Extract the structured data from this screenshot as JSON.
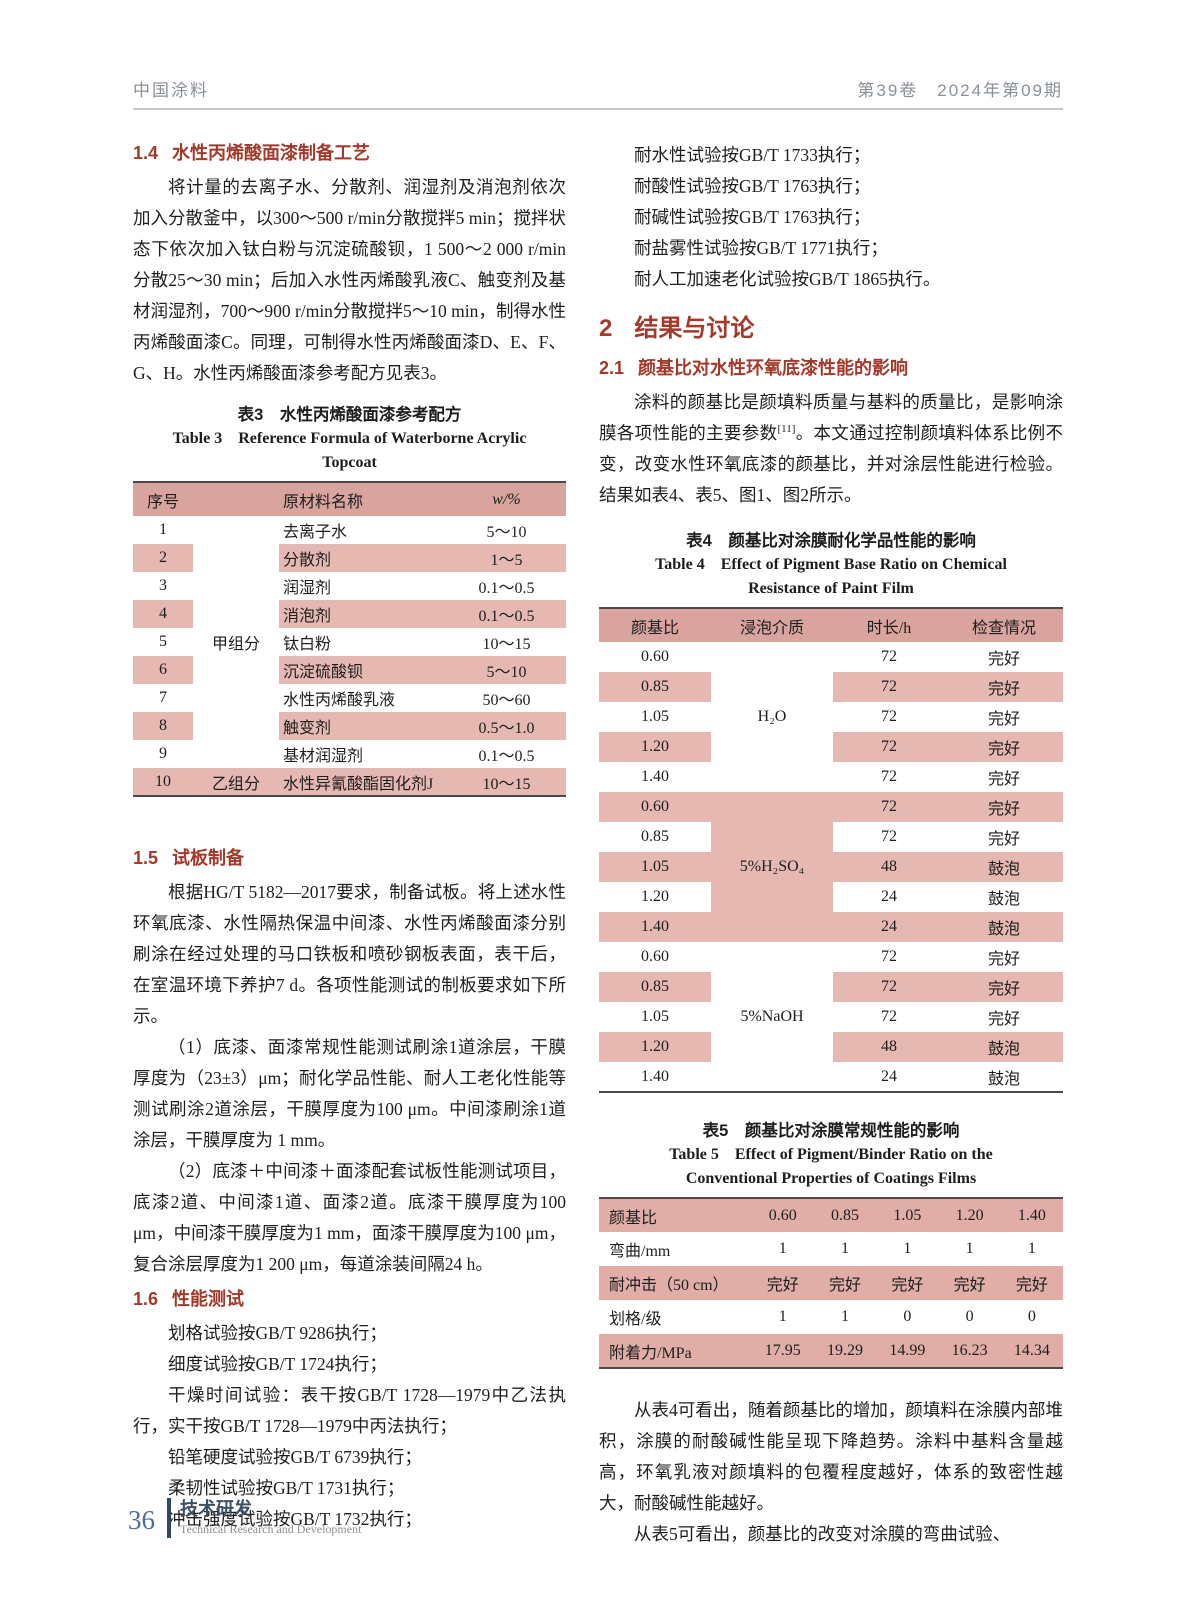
{
  "colors": {
    "accent_red": "#A3392B",
    "table_header_pink": "#D8A49D",
    "row_shade_pink": "#E5B9B2",
    "footer_blue": "#4A6E9B",
    "head_gray": "#8A9098"
  },
  "header": {
    "journal": "中国涂料",
    "issue": "第39卷　2024年第09期"
  },
  "left": {
    "sec14_num": "1.4",
    "sec14_title": "水性丙烯酸面漆制备工艺",
    "p14": "将计量的去离子水、分散剂、润湿剂及消泡剂依次加入分散釜中，以300～500 r/min分散搅拌5 min；搅拌状态下依次加入钛白粉与沉淀硫酸钡，1 500～2 000 r/min分散25～30 min；后加入水性丙烯酸乳液C、触变剂及基材润湿剂，700～900 r/min分散搅拌5～10 min，制得水性丙烯酸面漆C。同理，可制得水性丙烯酸面漆D、E、F、G、H。水性丙烯酸面漆参考配方见表3。",
    "table3": {
      "caption_zh": "表3　水性丙烯酸面漆参考配方",
      "caption_en1": "Table 3　Reference Formula of Waterborne Acrylic",
      "caption_en2": "Topcoat",
      "col_no": "序号",
      "col_name": "原材料名称",
      "col_w": "w/%",
      "group_a": "甲组分",
      "group_b": "乙组分",
      "rows": [
        {
          "no": "1",
          "name": "去离子水",
          "w": "5～10"
        },
        {
          "no": "2",
          "name": "分散剂",
          "w": "1～5"
        },
        {
          "no": "3",
          "name": "润湿剂",
          "w": "0.1～0.5"
        },
        {
          "no": "4",
          "name": "消泡剂",
          "w": "0.1～0.5"
        },
        {
          "no": "5",
          "name": "钛白粉",
          "w": "10～15"
        },
        {
          "no": "6",
          "name": "沉淀硫酸钡",
          "w": "5～10"
        },
        {
          "no": "7",
          "name": "水性丙烯酸乳液",
          "w": "50～60"
        },
        {
          "no": "8",
          "name": "触变剂",
          "w": "0.5～1.0"
        },
        {
          "no": "9",
          "name": "基材润湿剂",
          "w": "0.1～0.5"
        },
        {
          "no": "10",
          "name": "水性异氰酸酯固化剂J",
          "w": "10～15"
        }
      ]
    },
    "sec15_num": "1.5",
    "sec15_title": "试板制备",
    "p15a": "根据HG/T 5182—2017要求，制备试板。将上述水性环氧底漆、水性隔热保温中间漆、水性丙烯酸面漆分别刷涂在经过处理的马口铁板和喷砂钢板表面，表干后，在室温环境下养护7 d。各项性能测试的制板要求如下所示。",
    "p15b": "（1）底漆、面漆常规性能测试刷涂1道涂层，干膜厚度为（23±3）μm；耐化学品性能、耐人工老化性能等测试刷涂2道涂层，干膜厚度为100 μm。中间漆刷涂1道涂层，干膜厚度为 1 mm。",
    "p15c": "（2）底漆＋中间漆＋面漆配套试板性能测试项目，底漆2道、中间漆1道、面漆2道。底漆干膜厚度为100 μm，中间漆干膜厚度为1 mm，面漆干膜厚度为100 μm，复合涂层厚度为1 200 μm，每道涂装间隔24 h。",
    "sec16_num": "1.6",
    "sec16_title": "性能测试",
    "tests": [
      "划格试验按GB/T 9286执行；",
      "细度试验按GB/T 1724执行；",
      "干燥时间试验：表干按GB/T 1728—1979中乙法执行，实干按GB/T 1728—1979中丙法执行；",
      "铅笔硬度试验按GB/T 6739执行；",
      "柔韧性试验按GB/T 1731执行；",
      "冲击强度试验按GB/T 1732执行；"
    ]
  },
  "right": {
    "tests": [
      "耐水性试验按GB/T 1733执行；",
      "耐酸性试验按GB/T 1763执行；",
      "耐碱性试验按GB/T 1763执行；",
      "耐盐雾性试验按GB/T 1771执行；",
      "耐人工加速老化试验按GB/T 1865执行。"
    ],
    "sec2_num": "2",
    "sec2_title": "结果与讨论",
    "sec21_num": "2.1",
    "sec21_title": "颜基比对水性环氧底漆性能的影响",
    "p21a": "涂料的颜基比是颜填料质量与基料的质量比，是影响涂膜各项性能的主要参数",
    "p21sup": "[11]",
    "p21b": "。本文通过控制颜填料体系比例不变，改变水性环氧底漆的颜基比，并对涂层性能进行检验。结果如表4、表5、图1、图2所示。",
    "table4": {
      "caption_zh": "表4　颜基比对涂膜耐化学品性能的影响",
      "caption_en1": "Table 4　Effect of Pigment Base Ratio on Chemical",
      "caption_en2": "Resistance of Paint Film",
      "col_ratio": "颜基比",
      "col_medium": "浸泡介质",
      "col_time": "时长/h",
      "col_check": "检查情况",
      "groups": [
        {
          "medium": "H₂O",
          "rows": [
            [
              "0.60",
              "72",
              "完好"
            ],
            [
              "0.85",
              "72",
              "完好"
            ],
            [
              "1.05",
              "72",
              "完好"
            ],
            [
              "1.20",
              "72",
              "完好"
            ],
            [
              "1.40",
              "72",
              "完好"
            ]
          ]
        },
        {
          "medium": "5%H₂SO₄",
          "rows": [
            [
              "0.60",
              "72",
              "完好"
            ],
            [
              "0.85",
              "72",
              "完好"
            ],
            [
              "1.05",
              "48",
              "鼓泡"
            ],
            [
              "1.20",
              "24",
              "鼓泡"
            ],
            [
              "1.40",
              "24",
              "鼓泡"
            ]
          ]
        },
        {
          "medium": "5%NaOH",
          "rows": [
            [
              "0.60",
              "72",
              "完好"
            ],
            [
              "0.85",
              "72",
              "完好"
            ],
            [
              "1.05",
              "72",
              "完好"
            ],
            [
              "1.20",
              "48",
              "鼓泡"
            ],
            [
              "1.40",
              "24",
              "鼓泡"
            ]
          ]
        }
      ]
    },
    "table5": {
      "caption_zh": "表5　颜基比对涂膜常规性能的影响",
      "caption_en1": "Table 5　Effect of Pigment/Binder Ratio on the",
      "caption_en2": "Conventional Properties of Coatings Films",
      "rows": [
        {
          "label": "颜基比",
          "values": [
            "0.60",
            "0.85",
            "1.05",
            "1.20",
            "1.40"
          ]
        },
        {
          "label": "弯曲/mm",
          "values": [
            "1",
            "1",
            "1",
            "1",
            "1"
          ]
        },
        {
          "label": "耐冲击（50 cm）",
          "values": [
            "完好",
            "完好",
            "完好",
            "完好",
            "完好"
          ]
        },
        {
          "label": "划格/级",
          "values": [
            "1",
            "1",
            "0",
            "0",
            "0"
          ]
        },
        {
          "label": "附着力/MPa",
          "values": [
            "17.95",
            "19.29",
            "14.99",
            "16.23",
            "14.34"
          ]
        }
      ]
    },
    "p22": "从表4可看出，随着颜基比的增加，颜填料在涂膜内部堆积，涂膜的耐酸碱性能呈现下降趋势。涂料中基料含量越高，环氧乳液对颜填料的包覆程度越好，体系的致密性越大，耐酸碱性能越好。",
    "p23": "从表5可看出，颜基比的改变对涂膜的弯曲试验、"
  },
  "footer": {
    "page": "36",
    "section": "技术研发",
    "section_en": "Technical Research and Development"
  }
}
